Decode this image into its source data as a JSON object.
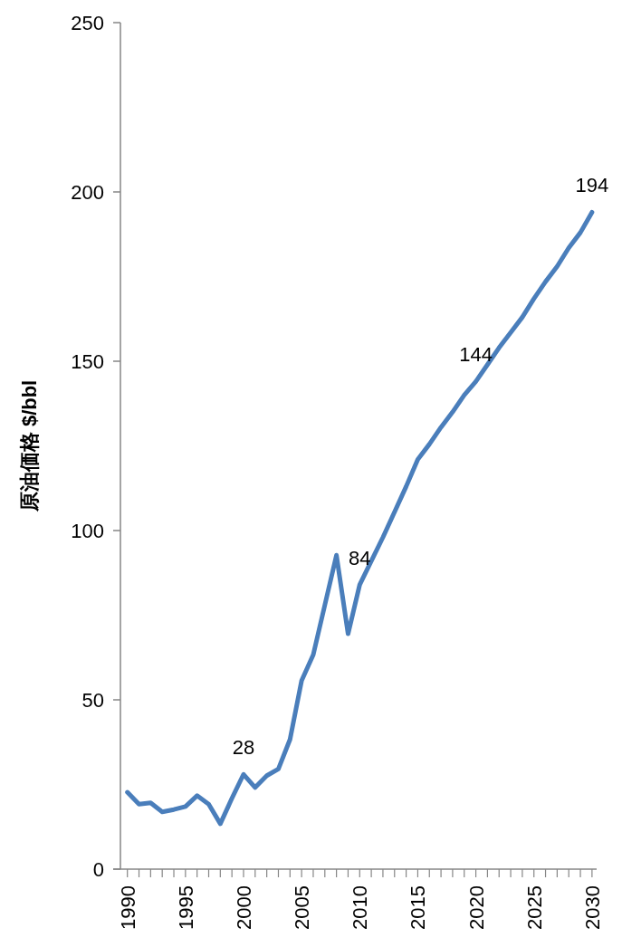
{
  "chart_data": {
    "type": "line",
    "ylabel": "原油価格 $/bbl",
    "x": [
      1990,
      1991,
      1992,
      1993,
      1994,
      1995,
      1996,
      1997,
      1998,
      1999,
      2000,
      2001,
      2002,
      2003,
      2004,
      2005,
      2006,
      2007,
      2008,
      2009,
      2010,
      2011,
      2012,
      2013,
      2014,
      2015,
      2016,
      2017,
      2018,
      2019,
      2020,
      2021,
      2022,
      2023,
      2024,
      2025,
      2026,
      2027,
      2028,
      2029,
      2030
    ],
    "series": [
      {
        "color": "#4a7ebb",
        "values": [
          22.7,
          19.2,
          19.6,
          16.9,
          17.6,
          18.5,
          21.7,
          19.2,
          13.4,
          20.9,
          28,
          24.1,
          27.6,
          29.6,
          38.3,
          55.7,
          63.3,
          78,
          92.7,
          69.5,
          84,
          91,
          98,
          105.5,
          113,
          121,
          125.5,
          130.5,
          135,
          140,
          144,
          149,
          154,
          158.5,
          163,
          168.5,
          173.5,
          178,
          183.5,
          188,
          194
        ],
        "value_labels": [
          null,
          null,
          null,
          null,
          null,
          null,
          null,
          null,
          null,
          null,
          "28",
          null,
          null,
          null,
          null,
          null,
          null,
          null,
          null,
          null,
          "84",
          null,
          null,
          null,
          null,
          null,
          null,
          null,
          null,
          null,
          "144",
          null,
          null,
          null,
          null,
          null,
          null,
          null,
          null,
          null,
          "194"
        ]
      }
    ],
    "xlim": [
      1989.4,
      2030.4
    ],
    "xticks": [
      1990,
      1995,
      2000,
      2005,
      2010,
      2015,
      2020,
      2025,
      2030
    ],
    "ylim": [
      0,
      250
    ],
    "yticks": [
      0,
      50,
      100,
      150,
      200,
      250
    ],
    "line_style": "solid"
  }
}
